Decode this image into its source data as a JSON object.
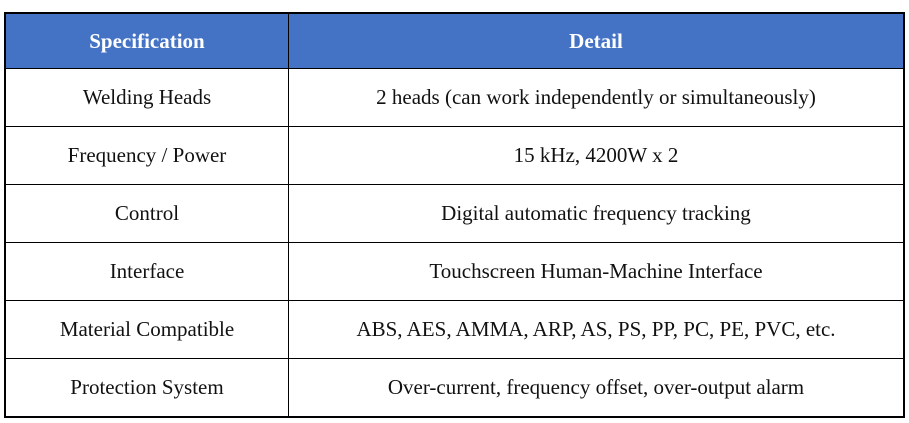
{
  "header": {
    "specification": "Specification",
    "detail": "Detail",
    "header_color": "#4472C4"
  },
  "rows": [
    {
      "spec": "Welding Heads",
      "detail": "2 heads (can work independently or simultaneously)"
    },
    {
      "spec": "Frequency / Power",
      "detail": "15 kHz, 4200W x 2"
    },
    {
      "spec": "Control",
      "detail": "Digital automatic frequency tracking"
    },
    {
      "spec": "Interface",
      "detail": "Touchscreen Human-Machine Interface"
    },
    {
      "spec": "Material Compatible",
      "detail": "ABS, AES, AMMA, ARP, AS, PS, PP, PC, PE, PVC, etc."
    },
    {
      "spec": "Protection System",
      "detail": "Over-current, frequency offset, over-output alarm"
    }
  ]
}
